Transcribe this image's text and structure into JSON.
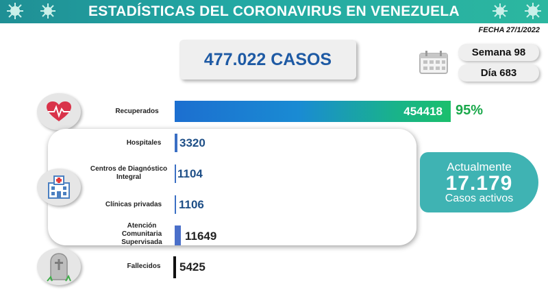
{
  "header": {
    "title": "ESTADÍSTICAS DEL CORONAVIRUS EN VENEZUELA"
  },
  "date": "FECHA 27/1/2022",
  "total_cases": "477.022 CASOS",
  "week": "Semana 98",
  "day": "Día 683",
  "recovered": {
    "label": "Recuperados",
    "value": "454418",
    "percent": "95%",
    "icon": "heart-pulse-icon"
  },
  "facilities": [
    {
      "label": "Hospitales",
      "value": "3320"
    },
    {
      "label": "Centros de Diagnóstico Integral",
      "value": "1104"
    },
    {
      "label": "Clínicas privadas",
      "value": "1106"
    },
    {
      "label": "Atención Comunitaria Supervisada",
      "value": "11649"
    }
  ],
  "active": {
    "line1": "Actualmente",
    "number": "17.179",
    "line2": "Casos activos"
  },
  "deaths": {
    "label": "Fallecidos",
    "value": "5425",
    "icon": "tombstone-icon"
  },
  "colors": {
    "teal": "#22a7a3",
    "blue": "#1e5aa4",
    "green": "#1aa84b"
  }
}
